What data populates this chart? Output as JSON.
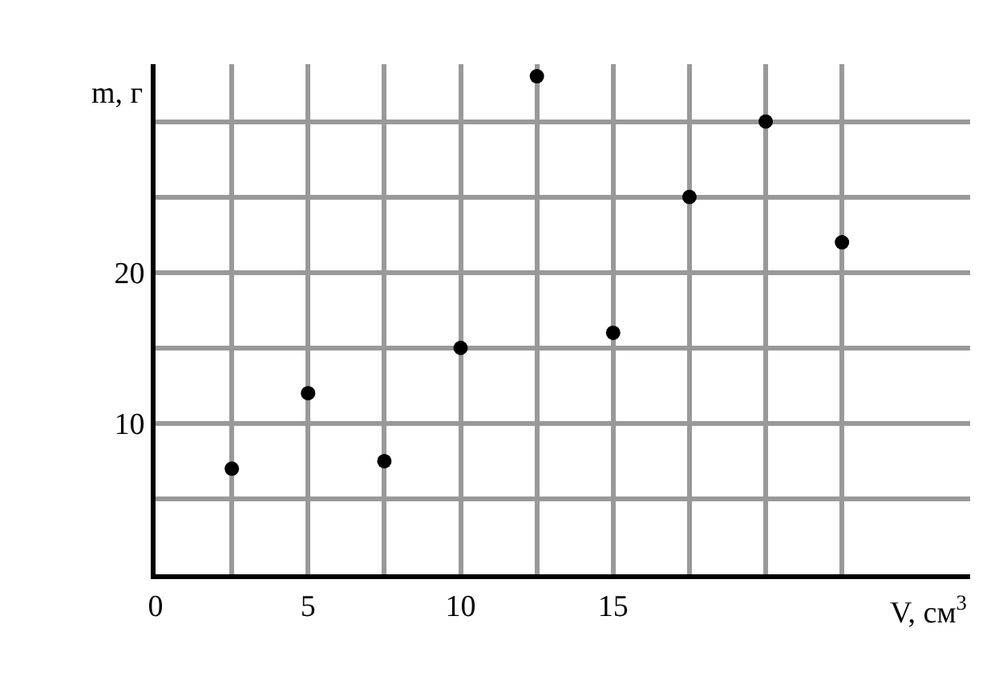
{
  "chart_data": {
    "type": "scatter",
    "xlabel": "V, см$^{3}$",
    "ylabel": "m, г",
    "x": [
      2.5,
      5,
      7.5,
      10,
      12.5,
      15,
      17.5,
      20,
      22.5
    ],
    "series": [
      {
        "color": "#000000",
        "values": [
          7,
          12,
          7.5,
          15,
          33,
          16,
          25,
          30,
          22
        ]
      }
    ],
    "xlim": [
      0,
      26.7
    ],
    "ylim": [
      0,
      33.8
    ],
    "xticks": [
      {
        "value": 0,
        "label": "0"
      },
      {
        "value": 2.5,
        "label": null
      },
      5,
      {
        "value": 7.5,
        "label": null
      },
      10,
      {
        "value": 12.5,
        "label": null
      },
      15,
      {
        "value": 17.5,
        "label": null
      },
      {
        "value": 20,
        "label": null
      },
      {
        "value": 22.5,
        "label": null
      }
    ],
    "yticks": [
      {
        "value": 5,
        "label": null
      },
      10,
      {
        "value": 15,
        "label": null
      },
      20,
      {
        "value": 25,
        "label": null
      },
      {
        "value": 30,
        "label": null
      }
    ],
    "grid": true,
    "marker": "circle",
    "legend": false
  }
}
